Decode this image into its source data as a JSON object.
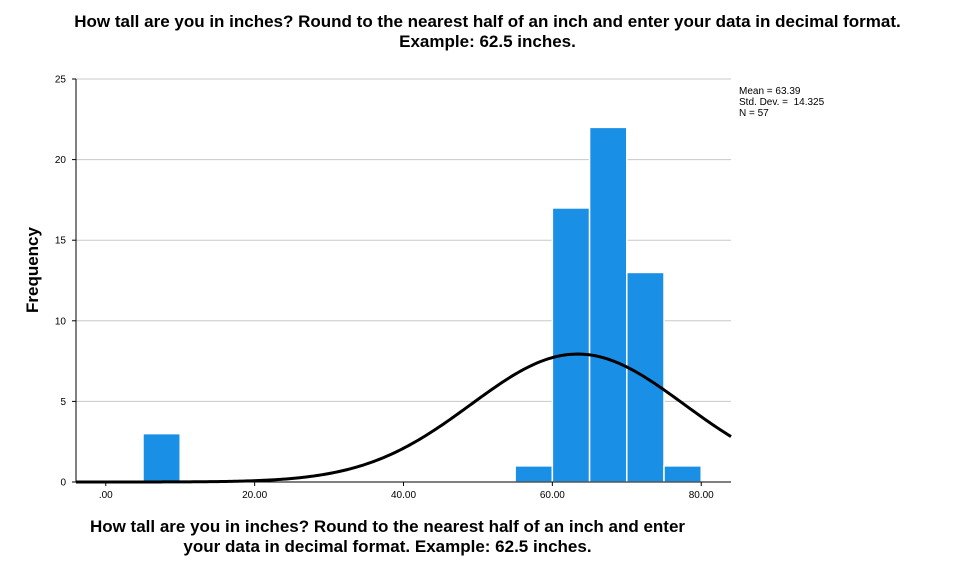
{
  "chart_data": {
    "type": "bar",
    "title_line1": "How tall are you in inches? Round to the nearest half of an inch and enter your data in decimal format.",
    "title_line2": "Example: 62.5 inches.",
    "xlabel_line1": "How tall are you in inches? Round to the nearest half of an inch and enter",
    "xlabel_line2": "your data in decimal format. Example: 62.5 inches.",
    "ylabel": "Frequency",
    "xlim": [
      -4,
      84
    ],
    "ylim": [
      0,
      25
    ],
    "x_ticks": [
      {
        "value": 0,
        "label": ".00"
      },
      {
        "value": 20,
        "label": "20.00"
      },
      {
        "value": 40,
        "label": "40.00"
      },
      {
        "value": 60,
        "label": "60.00"
      },
      {
        "value": 80,
        "label": "80.00"
      }
    ],
    "y_ticks": [
      0,
      5,
      10,
      15,
      20,
      25
    ],
    "grid": true,
    "bin_width": 5,
    "bins": [
      {
        "start": 5,
        "end": 10,
        "count": 3
      },
      {
        "start": 55,
        "end": 60,
        "count": 1
      },
      {
        "start": 60,
        "end": 65,
        "count": 17
      },
      {
        "start": 65,
        "end": 70,
        "count": 22
      },
      {
        "start": 70,
        "end": 75,
        "count": 13
      },
      {
        "start": 75,
        "end": 80,
        "count": 1
      }
    ],
    "bar_color": "#1a8fe6",
    "normal_curve": {
      "mean": 63.39,
      "sd": 14.325,
      "n": 57
    },
    "stats": {
      "mean_label": "Mean =",
      "mean": "63.39",
      "sd_label": "Std. Dev. =",
      "sd": "14.325",
      "n_label": "N =",
      "n": "57"
    },
    "legend_position": "top-right"
  }
}
